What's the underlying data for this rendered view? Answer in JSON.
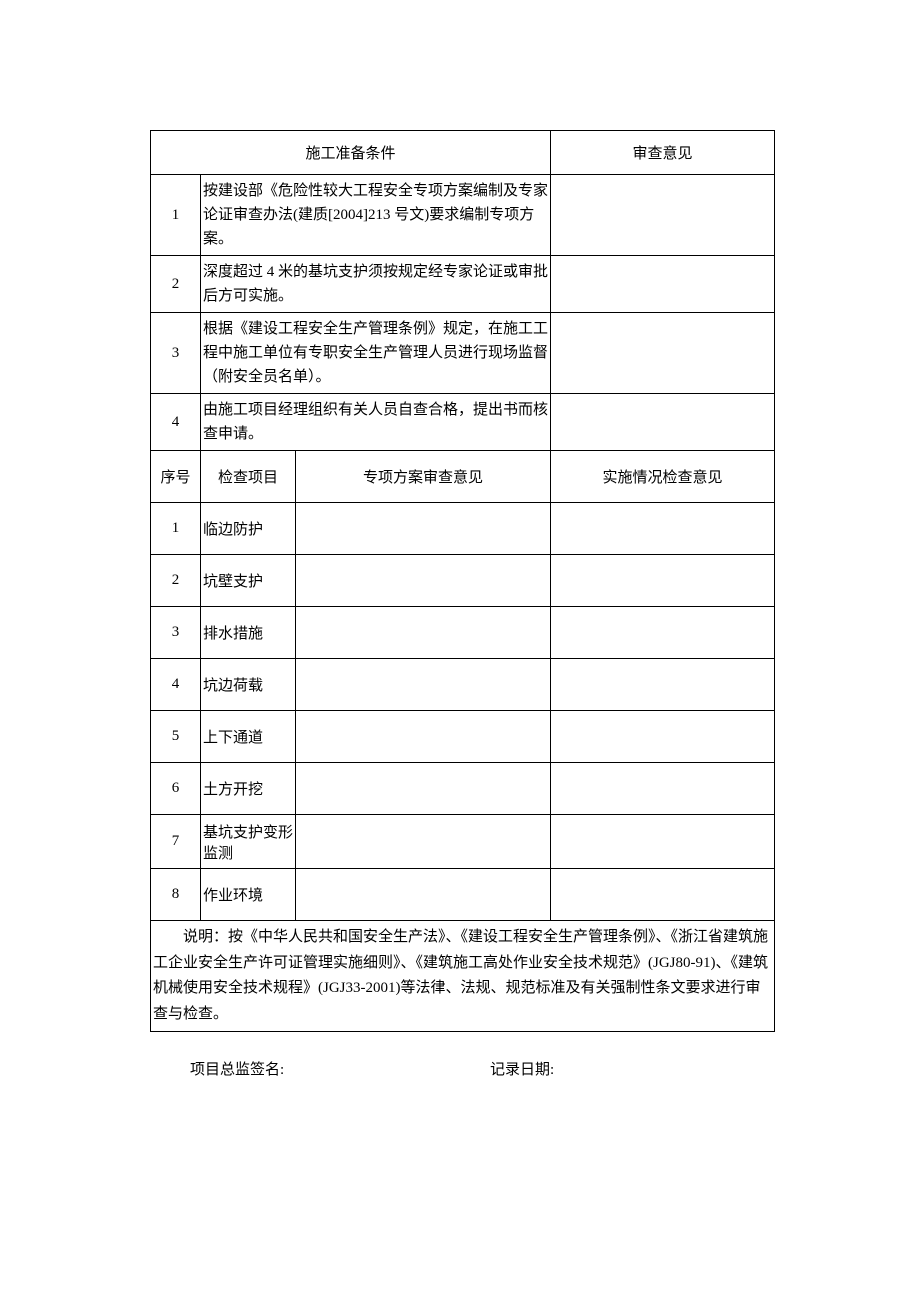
{
  "colors": {
    "text": "#000000",
    "border": "#000000",
    "background": "#ffffff"
  },
  "typography": {
    "base_font_size": 15,
    "font_family": "SimSun"
  },
  "header": {
    "prep_conditions": "施工准备条件",
    "review_opinion": "审查意见"
  },
  "prep_rows": [
    {
      "num": "1",
      "desc": "按建设部《危险性较大工程安全专项方案编制及专家论证审查办法(建质[2004]213 号文)要求编制专项方案。",
      "opinion": ""
    },
    {
      "num": "2",
      "desc": "深度超过 4 米的基坑支护须按规定经专家论证或审批后方可实施。",
      "opinion": ""
    },
    {
      "num": "3",
      "desc": "根据《建设工程安全生产管理条例》规定，在施工工程中施工单位有专职安全生产管理人员进行现场监督（附安全员名单）。",
      "opinion": ""
    },
    {
      "num": "4",
      "desc": "由施工项目经理组织有关人员自查合格，提出书而核查申请。",
      "opinion": ""
    }
  ],
  "check_header": {
    "seq": "序号",
    "item": "检查项目",
    "plan_opinion": "专项方案审查意见",
    "impl_opinion": "实施情况检查意见"
  },
  "check_rows": [
    {
      "num": "1",
      "item": "临边防护",
      "plan": "",
      "impl": ""
    },
    {
      "num": "2",
      "item": "坑壁支护",
      "plan": "",
      "impl": ""
    },
    {
      "num": "3",
      "item": "排水措施",
      "plan": "",
      "impl": ""
    },
    {
      "num": "4",
      "item": "坑边荷载",
      "plan": "",
      "impl": ""
    },
    {
      "num": "5",
      "item": "上下通道",
      "plan": "",
      "impl": ""
    },
    {
      "num": "6",
      "item": "土方开挖",
      "plan": "",
      "impl": ""
    },
    {
      "num": "7",
      "item": "基坑支护变形监测",
      "plan": "",
      "impl": ""
    },
    {
      "num": "8",
      "item": "作业环境",
      "plan": "",
      "impl": ""
    }
  ],
  "bottom_note": "说明：按《中华人民共和国安全生产法》、《建设工程安全生产管理条例》、《浙江省建筑施工企业安全生产许可证管理实施细则》、《建筑施工高处作业安全技术规范》(JGJ80-91)、《建筑机械使用安全技术规程》(JGJ33-2001)等法律、法规、规范标准及有关强制性条文要求进行审查与检查。",
  "signature": {
    "supervisor": "项目总监签名:",
    "date": "记录日期:"
  }
}
